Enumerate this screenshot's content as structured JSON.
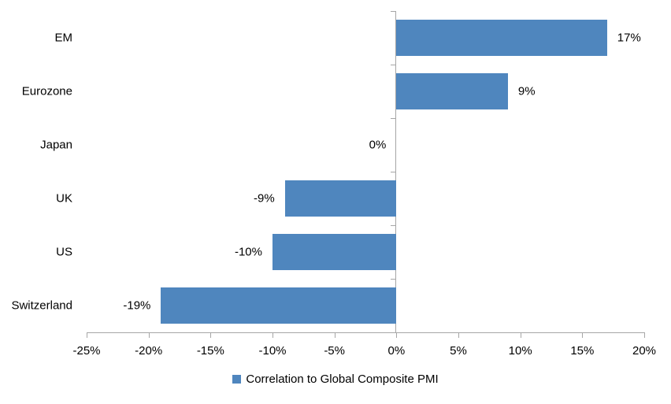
{
  "chart_data": {
    "type": "bar",
    "orientation": "horizontal",
    "title": "",
    "categories": [
      "EM",
      "Eurozone",
      "Japan",
      "UK",
      "US",
      "Switzerland"
    ],
    "series": [
      {
        "name": "Correlation to Global Composite PMI",
        "values": [
          17,
          9,
          0,
          -9,
          -10,
          -19
        ]
      }
    ],
    "value_labels": [
      "17%",
      "9%",
      "0%",
      "-9%",
      "-10%",
      "-19%"
    ],
    "xlim": [
      -25,
      20
    ],
    "x_tick_values": [
      -25,
      -20,
      -15,
      -10,
      -5,
      0,
      5,
      10,
      15,
      20
    ],
    "x_tick_labels": [
      "-25%",
      "-20%",
      "-15%",
      "-10%",
      "-5%",
      "0%",
      "5%",
      "10%",
      "15%",
      "20%"
    ],
    "grid": false,
    "legend": {
      "label": "Correlation to Global Composite PMI",
      "position": "bottom"
    },
    "colors": {
      "bar": "#4f86be",
      "axis": "#a6a6a6",
      "text": "#000000",
      "background": "#ffffff"
    }
  }
}
